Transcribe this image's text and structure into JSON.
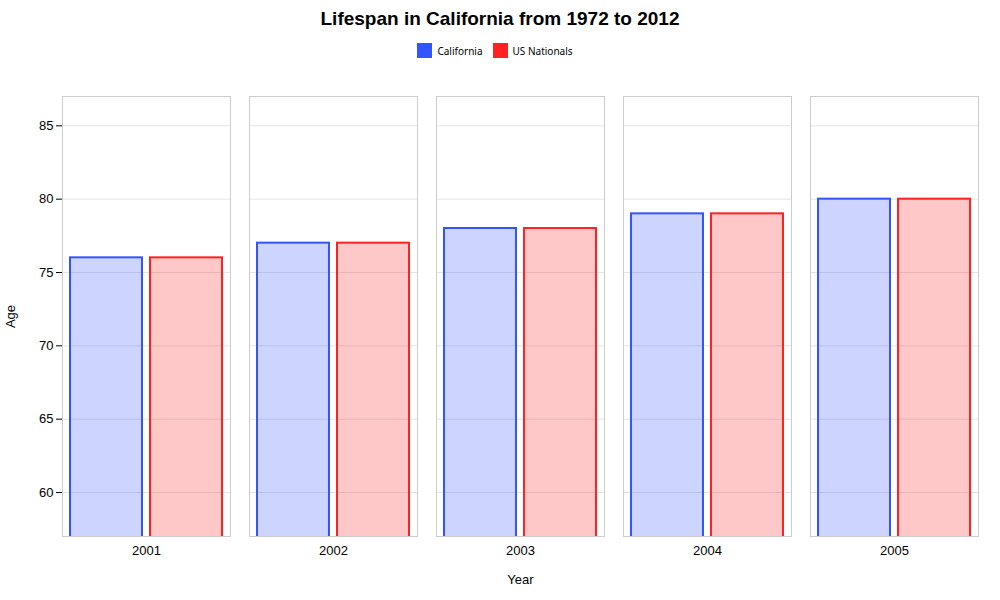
{
  "chart_data": {
    "type": "bar",
    "title": "Lifespan in California from 1972 to 2012",
    "xlabel": "Year",
    "ylabel": "Age",
    "categories": [
      "2001",
      "2002",
      "2003",
      "2004",
      "2005"
    ],
    "series": [
      {
        "name": "California",
        "color": "#3355ff",
        "values": [
          76,
          77,
          78,
          79,
          80
        ]
      },
      {
        "name": "US Nationals",
        "color": "#ff2222",
        "values": [
          76,
          77,
          78,
          79,
          80
        ]
      }
    ],
    "ylim": [
      57,
      87
    ],
    "yticks": [
      60,
      65,
      70,
      75,
      80,
      85
    ],
    "grid": true,
    "legend": "top"
  }
}
